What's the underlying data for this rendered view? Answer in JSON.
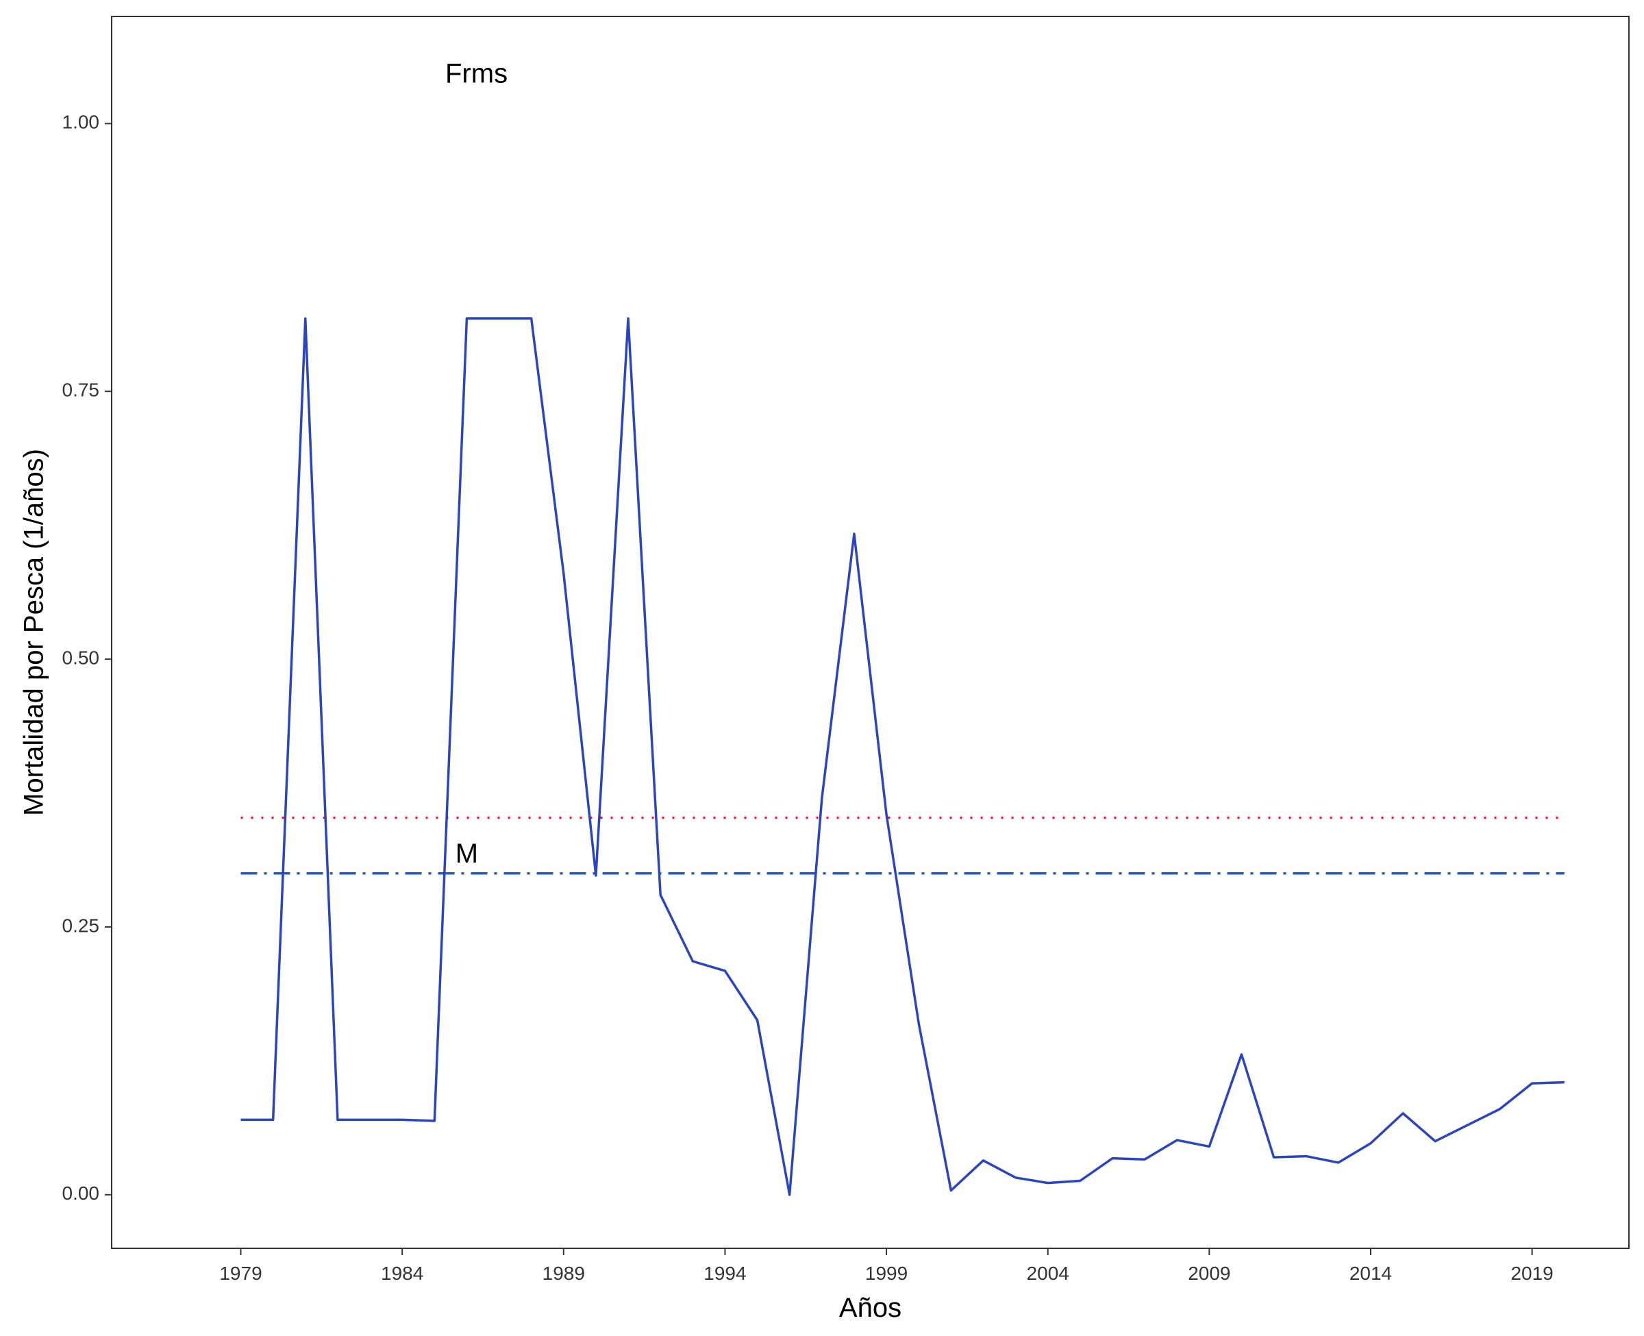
{
  "chart_data": {
    "type": "line",
    "title": "",
    "xlabel": "Años",
    "ylabel": "Mortalidad por Pesca (1/años)",
    "xlim": [
      1975,
      2022
    ],
    "ylim": [
      -0.05,
      1.1
    ],
    "xticks": [
      1979,
      1984,
      1989,
      1994,
      1999,
      2004,
      2009,
      2014,
      2019
    ],
    "yticks": [
      0.0,
      0.25,
      0.5,
      0.75,
      1.0
    ],
    "ytick_labels": [
      "0.00",
      "0.25",
      "0.50",
      "0.75",
      "1.00"
    ],
    "grid": false,
    "legend": "none",
    "x": [
      1979,
      1980,
      1981,
      1982,
      1983,
      1984,
      1985,
      1986,
      1987,
      1988,
      1989,
      1990,
      1991,
      1992,
      1993,
      1994,
      1995,
      1996,
      1997,
      1998,
      1999,
      2000,
      2001,
      2002,
      2003,
      2004,
      2005,
      2006,
      2007,
      2008,
      2009,
      2010,
      2011,
      2012,
      2013,
      2014,
      2015,
      2016,
      2017,
      2018,
      2019,
      2020
    ],
    "series": [
      {
        "color": "#2B44C0",
        "values": [
          0.07,
          0.07,
          0.818,
          0.07,
          0.07,
          0.07,
          0.069,
          0.818,
          0.818,
          0.818,
          0.58,
          0.298,
          0.818,
          0.28,
          0.218,
          0.209,
          0.163,
          0.0,
          0.37,
          0.617,
          0.355,
          0.16,
          0.004,
          0.032,
          0.016,
          0.011,
          0.013,
          0.034,
          0.033,
          0.051,
          0.045,
          0.131,
          0.035,
          0.036,
          0.03,
          0.048,
          0.076,
          0.05,
          0.065,
          0.08,
          0.104,
          0.105
        ]
      }
    ],
    "reference_lines": [
      {
        "value": 0.352,
        "color": "#E8192C",
        "style": "dotted"
      },
      {
        "value": 0.3,
        "color": "#1F5BC9",
        "style": "dashdot"
      }
    ],
    "annotations": [
      {
        "text": "Frms",
        "x": 1986.3,
        "y": 1.045
      },
      {
        "text": "M",
        "x": 1986.0,
        "y": 0.317
      }
    ]
  }
}
